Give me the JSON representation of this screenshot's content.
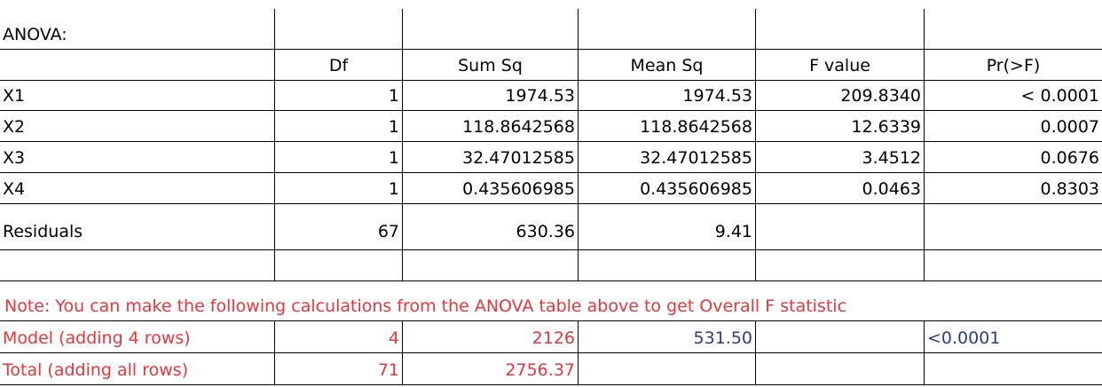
{
  "table": {
    "title": "ANOVA:",
    "headers": [
      "",
      "Df",
      "Sum Sq",
      "Mean Sq",
      "F value",
      "Pr(>F)"
    ],
    "rows": [
      [
        "X1",
        "1",
        "1974.53",
        "1974.53",
        "209.8340",
        "< 0.0001"
      ],
      [
        "X2",
        "1",
        "118.8642568",
        "118.8642568",
        "12.6339",
        "0.0007"
      ],
      [
        "X3",
        "1",
        "32.47012585",
        "32.47012585",
        "3.4512",
        "0.0676"
      ],
      [
        "X4",
        "1",
        "0.435606985",
        "0.435606985",
        "0.0463",
        "0.8303"
      ],
      [
        "Residuals",
        "67",
        "630.36",
        "9.41",
        "",
        ""
      ]
    ],
    "note": "Note: You can make the following calculations from the ANOVA table above to get Overall F statistic",
    "model_row": [
      "Model (adding 4 rows)",
      "4",
      "2126",
      "531.50",
      "",
      "<0.0001"
    ],
    "total_row": [
      "Total (adding all rows)",
      "71",
      "2756.37",
      "",
      "",
      ""
    ]
  },
  "colors": {
    "note_red": "#e8363b",
    "mean_sq_blue": "#2c3c8c",
    "grid": "#000000"
  }
}
